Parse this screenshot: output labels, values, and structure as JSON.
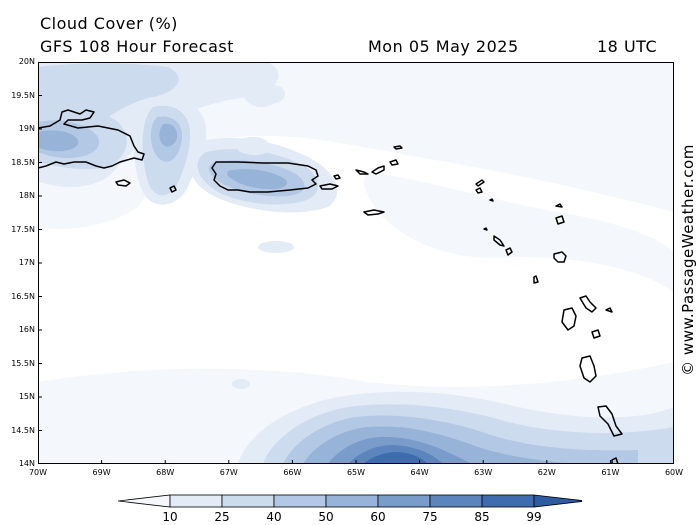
{
  "header": {
    "title": "Cloud Cover (%)",
    "subtitle": "GFS 108 Hour Forecast",
    "date": "Mon 05 May 2025",
    "time": "18 UTC"
  },
  "credit": "© www.PassageWeather.com",
  "map": {
    "lon_range": [
      -70,
      -60
    ],
    "lat_range": [
      14,
      20
    ],
    "lat_labels": [
      "20N",
      "19.5N",
      "19N",
      "18.5N",
      "18N",
      "17.5N",
      "17N",
      "16.5N",
      "16N",
      "15.5N",
      "15N",
      "14.5N",
      "14N"
    ],
    "lon_labels": [
      "70W",
      "69W",
      "68W",
      "67W",
      "66W",
      "65W",
      "64W",
      "63W",
      "62W",
      "61W",
      "60W"
    ]
  },
  "scale": {
    "levels": [
      "10",
      "25",
      "40",
      "50",
      "60",
      "75",
      "85",
      "99"
    ],
    "colors": [
      "#f4f7fc",
      "#e3ebf6",
      "#cddbee",
      "#b3c8e4",
      "#97b3d8",
      "#7a9ccb",
      "#5c84bd",
      "#3f6cae",
      "#2f5ba1"
    ]
  }
}
